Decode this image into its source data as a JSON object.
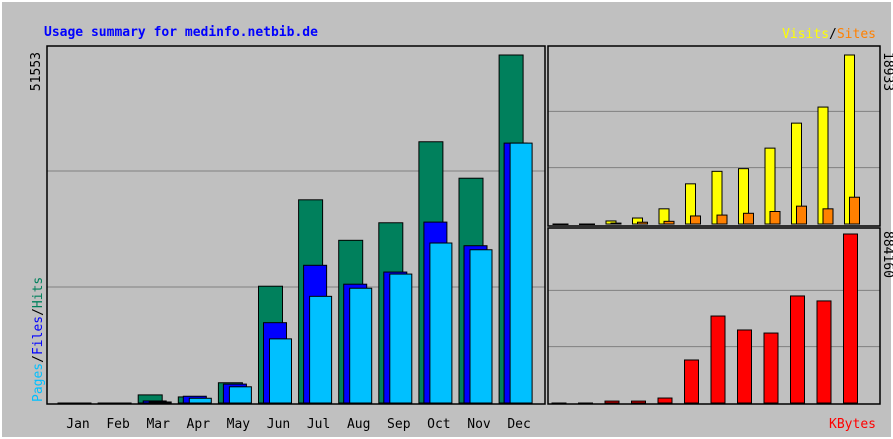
{
  "separator": "/",
  "chart_data": [
    {
      "type": "bar",
      "title": "Usage summary for medinfo.netbib.de",
      "categories": [
        "Jan",
        "Feb",
        "Mar",
        "Apr",
        "May",
        "Jun",
        "Jul",
        "Aug",
        "Sep",
        "Oct",
        "Nov",
        "Dec"
      ],
      "series": [
        {
          "name": "Hits",
          "color": "#00805c",
          "values": [
            0,
            0,
            1200,
            900,
            3000,
            17300,
            30100,
            24100,
            26700,
            38700,
            33300,
            51553
          ]
        },
        {
          "name": "Files",
          "color": "#0000ff",
          "values": [
            0,
            0,
            300,
            1000,
            2800,
            11900,
            20400,
            17600,
            19400,
            26800,
            23300,
            38500
          ]
        },
        {
          "name": "Pages",
          "color": "#00c0ff",
          "values": [
            0,
            0,
            150,
            700,
            2400,
            9500,
            15800,
            17000,
            19100,
            23700,
            22700,
            38500
          ]
        }
      ],
      "ylim": [
        0,
        51553
      ],
      "yticks": [
        51553
      ]
    },
    {
      "type": "bar",
      "series": [
        {
          "name": "Visits",
          "color": "#ffff00",
          "values": [
            0,
            0,
            340,
            670,
            1700,
            4500,
            5900,
            6200,
            8500,
            11300,
            13100,
            18933
          ]
        },
        {
          "name": "Sites",
          "color": "#ff8000",
          "values": [
            0,
            0,
            100,
            200,
            300,
            900,
            1000,
            1200,
            1400,
            2000,
            1700,
            3000
          ]
        }
      ],
      "ylim": [
        0,
        18933
      ],
      "yticks": [
        18933
      ]
    },
    {
      "type": "bar",
      "series": [
        {
          "name": "KBytes",
          "color": "#ff0000",
          "values": [
            0,
            0,
            10000,
            10000,
            26000,
            225000,
            455000,
            382000,
            366000,
            560000,
            534000,
            884160
          ]
        }
      ],
      "ylim": [
        0,
        884160
      ],
      "yticks": [
        884160
      ]
    }
  ]
}
